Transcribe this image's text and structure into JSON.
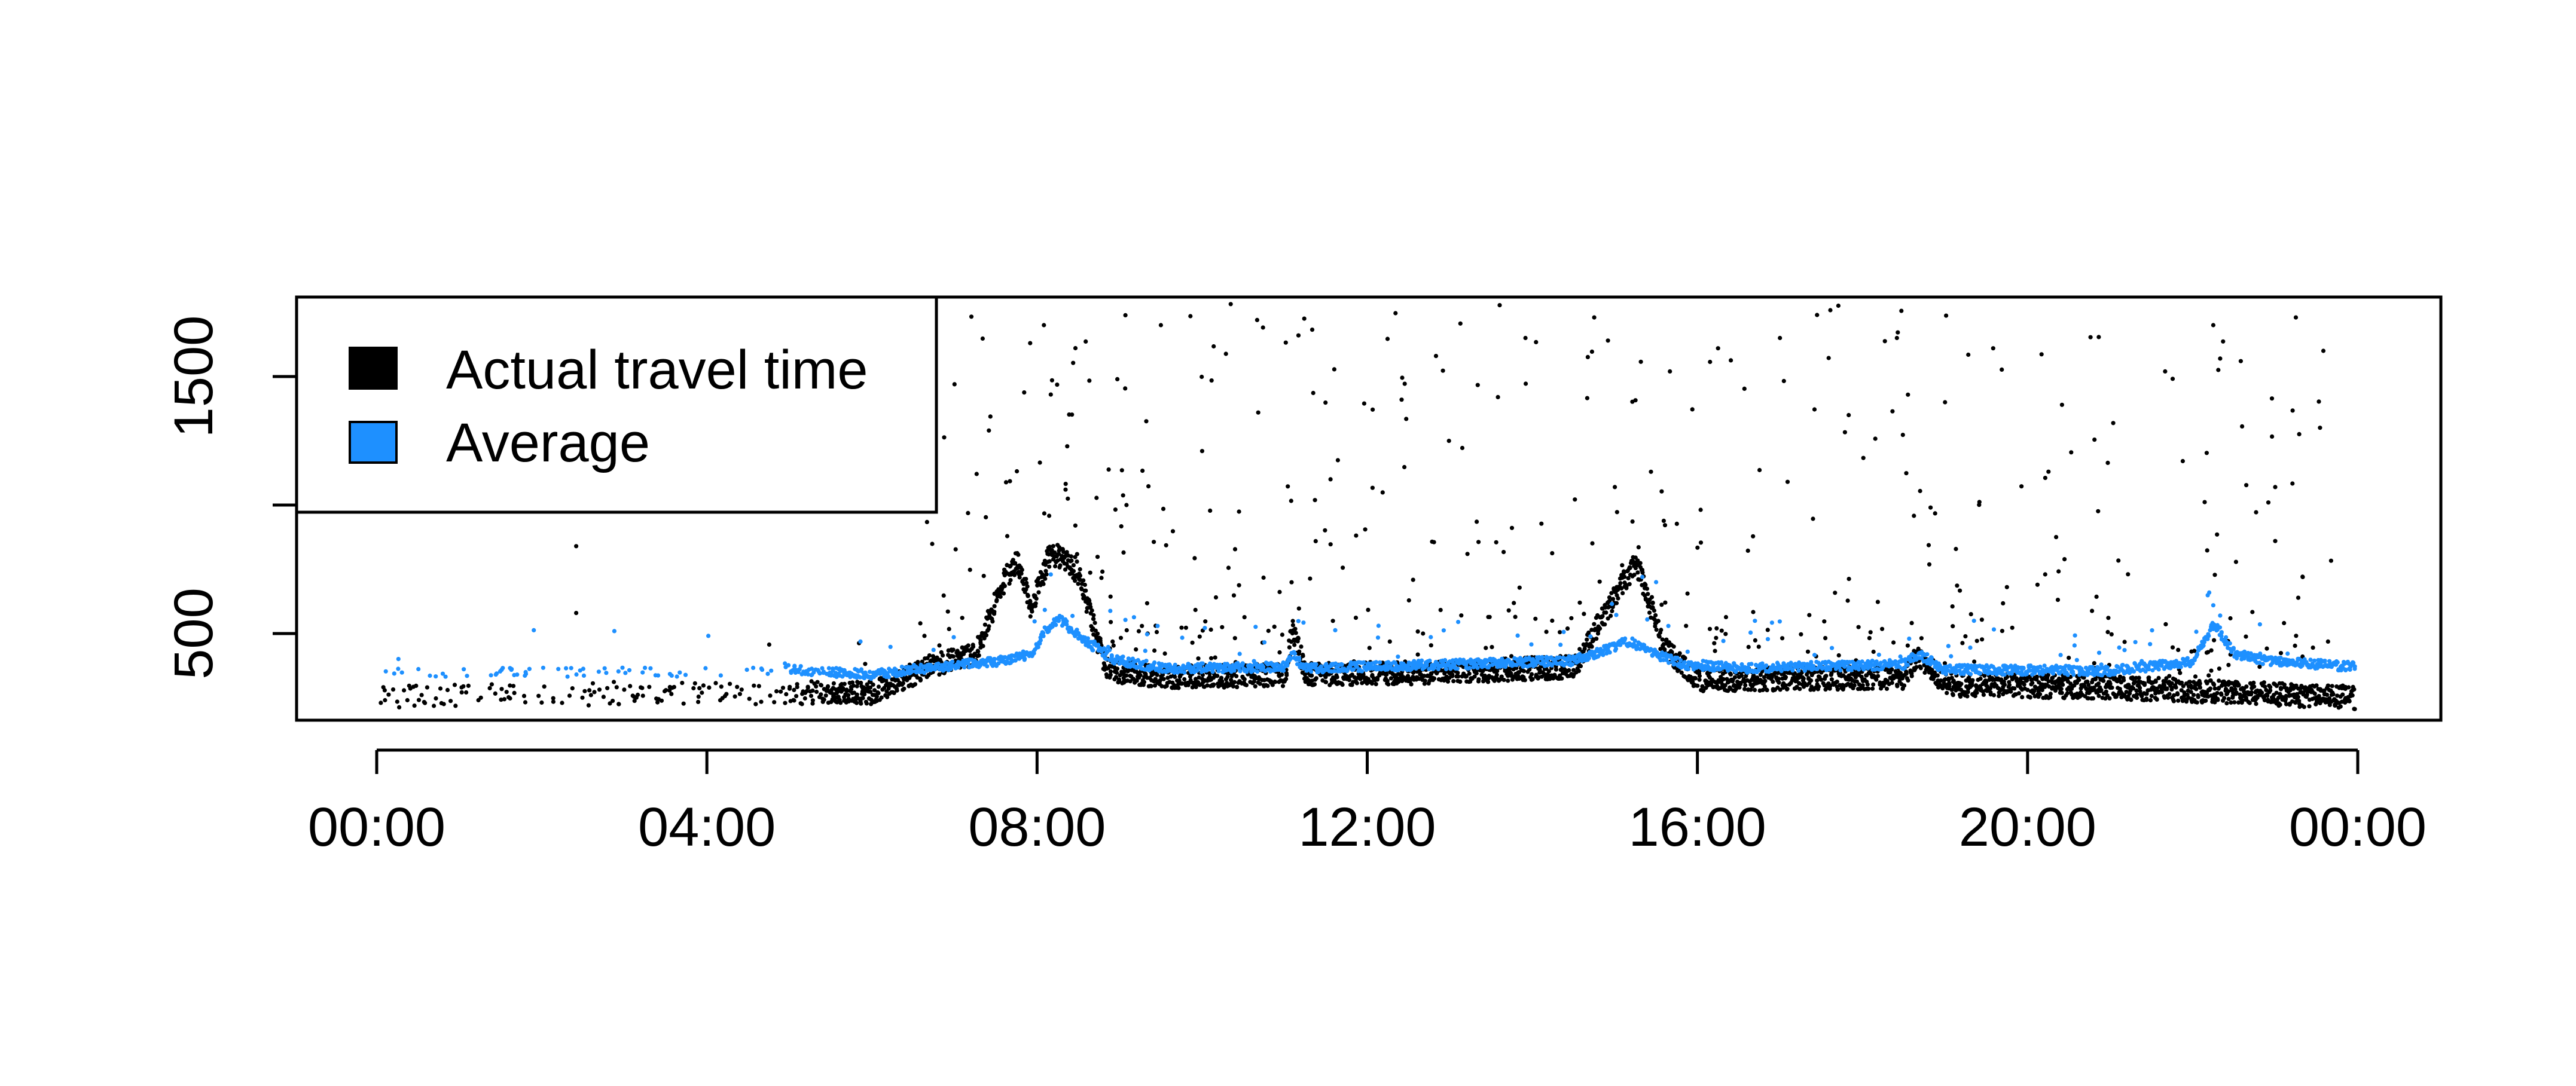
{
  "colors": {
    "actual": "#000000",
    "average": "#1E90FF",
    "frame": "#000000",
    "background": "#ffffff"
  },
  "legend": {
    "position": "top-left",
    "items": [
      {
        "label": "Actual travel time",
        "color": "#000000"
      },
      {
        "label": "Average",
        "color": "#1E90FF"
      }
    ]
  },
  "chart_data": {
    "type": "scatter",
    "title": "",
    "xlabel": "",
    "ylabel": "",
    "x_unit": "hours of day (HH:MM)",
    "xlim": [
      "00:00",
      "24:00"
    ],
    "ylim": [
      155,
      1830
    ],
    "x_ticks": [
      "00:00",
      "04:00",
      "08:00",
      "12:00",
      "16:00",
      "20:00",
      "00:00"
    ],
    "y_ticks": [
      500,
      1000,
      1500
    ],
    "y_tick_labels": [
      "500",
      "",
      "1500"
    ],
    "grid": false,
    "series": [
      {
        "name": "Actual travel time",
        "color": "#000000",
        "mode": "points",
        "profile": [
          [
            "00:00",
            255
          ],
          [
            "05:00",
            270
          ],
          [
            "06:00",
            270
          ],
          [
            "06:45",
            380
          ],
          [
            "07:15",
            420
          ],
          [
            "07:35",
            700
          ],
          [
            "07:45",
            780
          ],
          [
            "07:55",
            600
          ],
          [
            "08:10",
            820
          ],
          [
            "08:30",
            730
          ],
          [
            "08:50",
            360
          ],
          [
            "09:30",
            330
          ],
          [
            "11:00",
            340
          ],
          [
            "11:05",
            510
          ],
          [
            "11:15",
            340
          ],
          [
            "13:00",
            350
          ],
          [
            "14:30",
            370
          ],
          [
            "15:00",
            650
          ],
          [
            "15:15",
            780
          ],
          [
            "15:35",
            450
          ],
          [
            "16:00",
            320
          ],
          [
            "18:30",
            330
          ],
          [
            "18:40",
            420
          ],
          [
            "19:00",
            300
          ],
          [
            "21:00",
            290
          ],
          [
            "24:00",
            250
          ]
        ],
        "outliers": [
          [
            "02:25",
            840
          ],
          [
            "02:25",
            580
          ],
          [
            "07:00",
            1470
          ],
          [
            "07:25",
            1290
          ],
          [
            "07:55",
            1630
          ],
          [
            "08:05",
            1700
          ],
          [
            "08:10",
            1430
          ],
          [
            "09:05",
            1000
          ],
          [
            "09:30",
            1700
          ],
          [
            "10:00",
            1210
          ],
          [
            "10:40",
            1720
          ],
          [
            "11:10",
            1660
          ],
          [
            "12:25",
            1410
          ],
          [
            "12:50",
            1580
          ],
          [
            "13:35",
            1420
          ],
          [
            "13:55",
            1650
          ],
          [
            "14:45",
            1730
          ],
          [
            "14:55",
            1640
          ],
          [
            "15:00",
            1070
          ],
          [
            "15:40",
            1520
          ],
          [
            "16:15",
            1610
          ],
          [
            "17:00",
            1650
          ],
          [
            "17:50",
            1350
          ],
          [
            "18:25",
            1650
          ],
          [
            "19:00",
            1400
          ],
          [
            "19:35",
            1610
          ],
          [
            "20:25",
            1390
          ],
          [
            "21:40",
            1520
          ],
          [
            "22:15",
            1700
          ],
          [
            "22:20",
            1570
          ],
          [
            "22:35",
            1560
          ],
          [
            "22:55",
            1010
          ],
          [
            "23:00",
            1070
          ],
          [
            "23:15",
            1730
          ],
          [
            "23:35",
            1600
          ],
          [
            "23:00",
            860
          ],
          [
            "23:20",
            720
          ]
        ]
      },
      {
        "name": "Average",
        "color": "#1E90FF",
        "mode": "points",
        "profile": [
          [
            "00:00",
            350
          ],
          [
            "04:00",
            350
          ],
          [
            "05:00",
            360
          ],
          [
            "06:00",
            340
          ],
          [
            "06:45",
            370
          ],
          [
            "07:30",
            390
          ],
          [
            "07:55",
            420
          ],
          [
            "08:05",
            510
          ],
          [
            "08:15",
            560
          ],
          [
            "08:35",
            470
          ],
          [
            "08:55",
            400
          ],
          [
            "09:30",
            365
          ],
          [
            "11:00",
            370
          ],
          [
            "11:05",
            420
          ],
          [
            "11:15",
            365
          ],
          [
            "13:00",
            380
          ],
          [
            "14:30",
            395
          ],
          [
            "15:10",
            470
          ],
          [
            "15:30",
            420
          ],
          [
            "15:50",
            380
          ],
          [
            "16:30",
            365
          ],
          [
            "18:30",
            380
          ],
          [
            "18:40",
            420
          ],
          [
            "19:00",
            360
          ],
          [
            "21:00",
            355
          ],
          [
            "22:00",
            390
          ],
          [
            "22:15",
            540
          ],
          [
            "22:30",
            420
          ],
          [
            "23:00",
            390
          ],
          [
            "24:00",
            370
          ]
        ],
        "outliers": [
          [
            "08:10",
            730
          ],
          [
            "15:20",
            720
          ],
          [
            "15:30",
            700
          ],
          [
            "22:15",
            610
          ],
          [
            "22:20",
            570
          ]
        ]
      }
    ]
  }
}
